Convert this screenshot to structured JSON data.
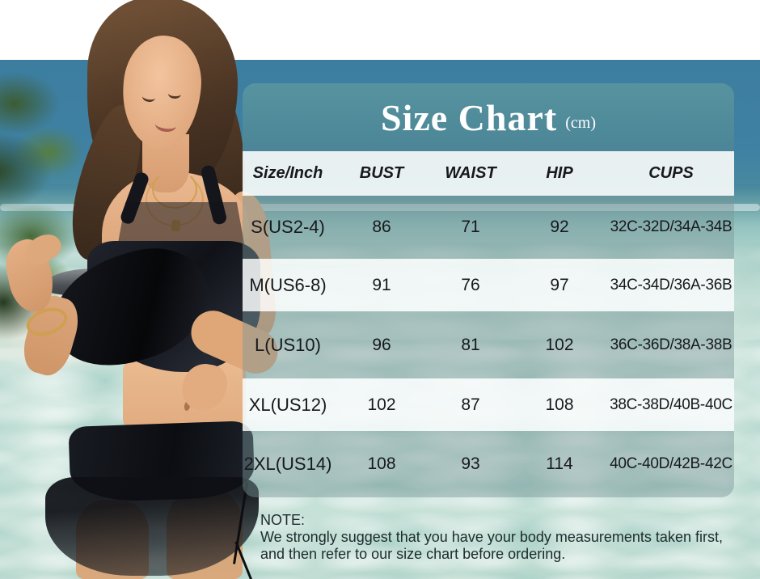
{
  "banner": {
    "title": "Size Chart",
    "unit": "(cm)",
    "note": {
      "label": "NOTE:",
      "line1": "We strongly suggest that you have your body measurements taken first,",
      "line2": "and then refer to our size chart before ordering."
    },
    "colors": {
      "header_teal": "#4f8b9c",
      "row_white": "#f4f8f7",
      "row_tint": "#9db8ba",
      "ocean_deep": "#3c7da0",
      "water_light": "#cfe6de",
      "text_dark": "#17191c",
      "title_white": "#ffffff"
    }
  },
  "chart_data": {
    "type": "table",
    "title": "Size Chart",
    "unit": "cm",
    "columns": [
      "Size/Inch",
      "BUST",
      "WAIST",
      "HIP",
      "CUPS"
    ],
    "rows": [
      [
        "S(US2-4)",
        "86",
        "71",
        "92",
        "32C-32D/34A-34B"
      ],
      [
        "M(US6-8)",
        "91",
        "76",
        "97",
        "34C-34D/36A-36B"
      ],
      [
        "L(US10)",
        "96",
        "81",
        "102",
        "36C-36D/38A-38B"
      ],
      [
        "XL(US12)",
        "102",
        "87",
        "108",
        "38C-38D/40B-40C"
      ],
      [
        "2XL(US14)",
        "108",
        "93",
        "114",
        "40C-40D/42B-42C"
      ]
    ],
    "note": "We strongly suggest that you have your body measurements taken first, and then refer to our size chart before ordering."
  }
}
